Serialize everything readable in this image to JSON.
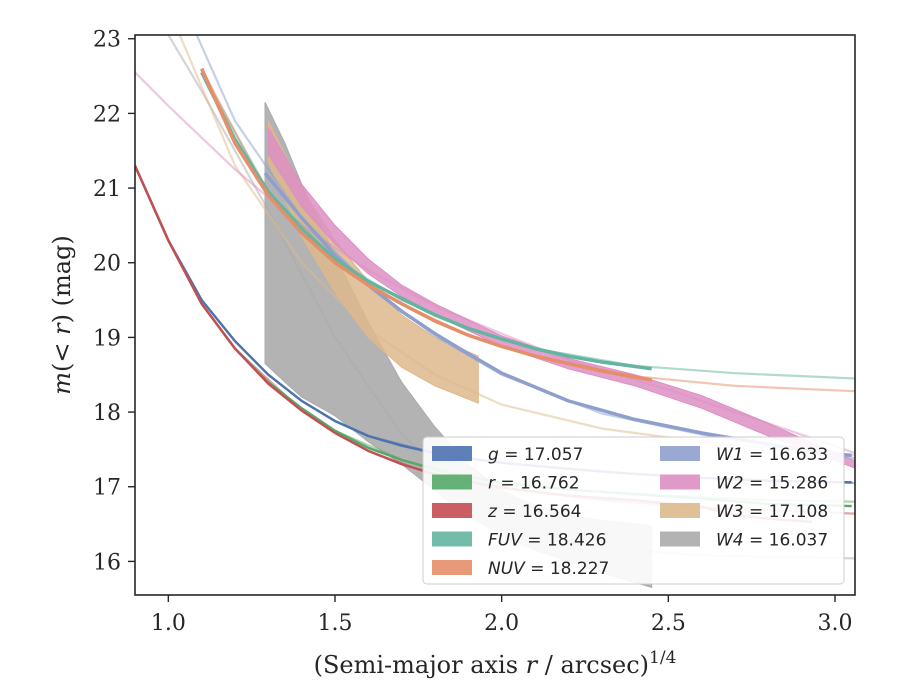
{
  "chart_data": {
    "type": "line",
    "xlabel": "(Semi-major axis r / arcsec)^{1/4}",
    "ylabel": "m(< r) (mag)",
    "xlim": [
      0.9,
      3.06
    ],
    "ylim": [
      23.05,
      15.55
    ],
    "y_inverted": true,
    "x_ticks": [
      1.0,
      1.5,
      2.0,
      2.5,
      3.0
    ],
    "x_tick_labels": [
      "1.0",
      "1.5",
      "2.0",
      "2.5",
      "3.0"
    ],
    "y_ticks": [
      16,
      17,
      18,
      19,
      20,
      21,
      22,
      23
    ],
    "y_tick_labels": [
      "16",
      "17",
      "18",
      "19",
      "20",
      "21",
      "22",
      "23"
    ],
    "grid": false,
    "legend_position": "lower-right",
    "legend_columns": 2,
    "series": [
      {
        "name": "g",
        "label_value": "17.057",
        "color": "#4c72b0",
        "data": [
          [
            0.9,
            21.3
          ],
          [
            1.0,
            20.3
          ],
          [
            1.1,
            19.5
          ],
          [
            1.2,
            18.95
          ],
          [
            1.3,
            18.5
          ],
          [
            1.4,
            18.15
          ],
          [
            1.5,
            17.88
          ],
          [
            1.6,
            17.68
          ],
          [
            1.7,
            17.55
          ],
          [
            1.8,
            17.45
          ],
          [
            1.9,
            17.38
          ],
          [
            2.0,
            17.32
          ],
          [
            2.2,
            17.24
          ],
          [
            2.4,
            17.17
          ],
          [
            2.6,
            17.12
          ],
          [
            2.8,
            17.08
          ],
          [
            3.05,
            17.06
          ]
        ],
        "model": [
          [
            0.9,
            21.3
          ],
          [
            1.0,
            20.3
          ],
          [
            1.1,
            19.5
          ],
          [
            1.2,
            18.95
          ],
          [
            1.3,
            18.5
          ],
          [
            1.4,
            18.15
          ],
          [
            1.5,
            17.88
          ],
          [
            1.6,
            17.68
          ],
          [
            1.8,
            17.45
          ],
          [
            2.0,
            17.32
          ],
          [
            2.3,
            17.2
          ],
          [
            2.6,
            17.12
          ],
          [
            3.06,
            17.05
          ]
        ]
      },
      {
        "name": "r",
        "label_value": "16.762",
        "color": "#55a868",
        "data": [
          [
            0.9,
            21.3
          ],
          [
            1.0,
            20.3
          ],
          [
            1.1,
            19.45
          ],
          [
            1.2,
            18.85
          ],
          [
            1.3,
            18.4
          ],
          [
            1.4,
            18.05
          ],
          [
            1.5,
            17.75
          ],
          [
            1.6,
            17.52
          ],
          [
            1.7,
            17.36
          ],
          [
            1.8,
            17.23
          ],
          [
            1.9,
            17.13
          ],
          [
            2.0,
            17.05
          ],
          [
            2.2,
            16.96
          ],
          [
            2.4,
            16.9
          ],
          [
            2.6,
            16.84
          ],
          [
            2.8,
            16.77
          ],
          [
            3.05,
            16.74
          ]
        ],
        "model": [
          [
            0.9,
            21.3
          ],
          [
            1.0,
            20.3
          ],
          [
            1.1,
            19.45
          ],
          [
            1.2,
            18.85
          ],
          [
            1.3,
            18.4
          ],
          [
            1.4,
            18.05
          ],
          [
            1.5,
            17.75
          ],
          [
            1.7,
            17.36
          ],
          [
            1.9,
            17.13
          ],
          [
            2.2,
            16.96
          ],
          [
            2.5,
            16.88
          ],
          [
            2.8,
            16.82
          ],
          [
            3.06,
            16.8
          ]
        ]
      },
      {
        "name": "z",
        "label_value": "16.564",
        "color": "#c44e52",
        "data": [
          [
            0.9,
            21.3
          ],
          [
            1.0,
            20.3
          ],
          [
            1.1,
            19.45
          ],
          [
            1.2,
            18.85
          ],
          [
            1.3,
            18.38
          ],
          [
            1.4,
            18.02
          ],
          [
            1.5,
            17.72
          ],
          [
            1.6,
            17.48
          ],
          [
            1.7,
            17.3
          ],
          [
            1.8,
            17.17
          ],
          [
            1.9,
            17.07
          ],
          [
            2.0,
            16.99
          ],
          [
            2.2,
            16.88
          ],
          [
            2.4,
            16.82
          ],
          [
            2.6,
            16.73
          ],
          [
            2.7,
            16.62
          ],
          [
            2.8,
            16.57
          ],
          [
            2.93,
            16.53
          ]
        ],
        "model": [
          [
            0.9,
            21.3
          ],
          [
            1.0,
            20.3
          ],
          [
            1.1,
            19.45
          ],
          [
            1.2,
            18.85
          ],
          [
            1.4,
            18.02
          ],
          [
            1.6,
            17.48
          ],
          [
            1.8,
            17.15
          ],
          [
            2.0,
            16.98
          ],
          [
            2.3,
            16.82
          ],
          [
            2.6,
            16.72
          ],
          [
            3.06,
            16.64
          ]
        ]
      },
      {
        "name": "FUV",
        "label_value": "18.426",
        "color": "#64b5a0",
        "data": [
          [
            1.1,
            22.55
          ],
          [
            1.2,
            21.65
          ],
          [
            1.3,
            20.95
          ],
          [
            1.4,
            20.45
          ],
          [
            1.5,
            20.05
          ],
          [
            1.6,
            19.75
          ],
          [
            1.7,
            19.52
          ],
          [
            1.8,
            19.3
          ],
          [
            1.9,
            19.12
          ],
          [
            2.0,
            18.98
          ],
          [
            2.1,
            18.85
          ],
          [
            2.2,
            18.75
          ],
          [
            2.3,
            18.67
          ],
          [
            2.45,
            18.58
          ]
        ],
        "model": [
          [
            1.1,
            22.55
          ],
          [
            1.3,
            20.95
          ],
          [
            1.5,
            20.05
          ],
          [
            1.7,
            19.5
          ],
          [
            1.9,
            19.12
          ],
          [
            2.1,
            18.85
          ],
          [
            2.4,
            18.62
          ],
          [
            2.7,
            18.52
          ],
          [
            3.06,
            18.45
          ]
        ]
      },
      {
        "name": "NUV",
        "label_value": "18.227",
        "color": "#e58e6a",
        "data": [
          [
            1.1,
            22.6
          ],
          [
            1.2,
            21.6
          ],
          [
            1.3,
            20.9
          ],
          [
            1.4,
            20.4
          ],
          [
            1.5,
            20.0
          ],
          [
            1.6,
            19.7
          ],
          [
            1.7,
            19.45
          ],
          [
            1.8,
            19.22
          ],
          [
            1.9,
            19.03
          ],
          [
            2.0,
            18.88
          ],
          [
            2.1,
            18.75
          ],
          [
            2.2,
            18.65
          ],
          [
            2.3,
            18.55
          ],
          [
            2.45,
            18.43
          ]
        ],
        "model": [
          [
            1.1,
            22.6
          ],
          [
            1.3,
            20.9
          ],
          [
            1.5,
            20.0
          ],
          [
            1.7,
            19.45
          ],
          [
            1.9,
            19.03
          ],
          [
            2.1,
            18.75
          ],
          [
            2.4,
            18.48
          ],
          [
            2.7,
            18.35
          ],
          [
            3.06,
            18.28
          ]
        ]
      },
      {
        "name": "W1",
        "label_value": "16.633",
        "color": "#8f9fcd",
        "data": [
          [
            1.29,
            21.2
          ],
          [
            1.4,
            20.6
          ],
          [
            1.5,
            20.1
          ],
          [
            1.6,
            19.7
          ],
          [
            1.7,
            19.35
          ],
          [
            1.8,
            19.05
          ],
          [
            1.9,
            18.78
          ],
          [
            2.0,
            18.52
          ],
          [
            2.2,
            18.15
          ],
          [
            2.4,
            17.9
          ],
          [
            2.6,
            17.72
          ],
          [
            2.8,
            17.57
          ],
          [
            2.95,
            17.46
          ],
          [
            3.05,
            17.42
          ]
        ],
        "model": [
          [
            1.07,
            23.2
          ],
          [
            1.2,
            21.9
          ],
          [
            1.4,
            20.6
          ],
          [
            1.6,
            19.7
          ],
          [
            1.8,
            19.02
          ],
          [
            2.0,
            18.5
          ],
          [
            2.3,
            17.98
          ],
          [
            2.6,
            17.7
          ],
          [
            2.8,
            17.56
          ],
          [
            3.06,
            17.38
          ]
        ]
      },
      {
        "name": "W2",
        "label_value": "15.286",
        "color": "#dd8fc4",
        "data_lower": [
          [
            1.3,
            21.8
          ],
          [
            1.4,
            21.05
          ],
          [
            1.5,
            20.5
          ],
          [
            1.6,
            20.05
          ],
          [
            1.7,
            19.7
          ],
          [
            1.8,
            19.45
          ],
          [
            2.0,
            19.02
          ],
          [
            2.2,
            18.72
          ],
          [
            2.4,
            18.5
          ],
          [
            2.6,
            18.22
          ],
          [
            2.8,
            17.85
          ],
          [
            3.0,
            17.45
          ],
          [
            3.06,
            17.35
          ]
        ],
        "data_upper": [
          [
            1.3,
            21.45
          ],
          [
            1.4,
            20.75
          ],
          [
            1.5,
            20.25
          ],
          [
            1.6,
            19.85
          ],
          [
            1.7,
            19.55
          ],
          [
            1.8,
            19.3
          ],
          [
            2.0,
            18.88
          ],
          [
            2.2,
            18.58
          ],
          [
            2.4,
            18.35
          ],
          [
            2.6,
            18.05
          ],
          [
            2.8,
            17.68
          ],
          [
            3.0,
            17.35
          ],
          [
            3.06,
            17.25
          ]
        ],
        "model": [
          [
            0.9,
            22.55
          ],
          [
            1.0,
            22.1
          ],
          [
            1.2,
            21.25
          ],
          [
            1.4,
            20.5
          ],
          [
            1.6,
            19.9
          ],
          [
            1.8,
            19.42
          ],
          [
            2.0,
            19.05
          ],
          [
            2.2,
            18.7
          ],
          [
            2.5,
            18.3
          ],
          [
            2.8,
            17.85
          ],
          [
            3.06,
            17.45
          ]
        ]
      },
      {
        "name": "W3",
        "label_value": "17.108",
        "color": "#ddb98c",
        "data_lower": [
          [
            1.3,
            21.9
          ],
          [
            1.4,
            21.0
          ],
          [
            1.5,
            20.3
          ],
          [
            1.6,
            19.75
          ],
          [
            1.7,
            19.3
          ],
          [
            1.8,
            19.0
          ],
          [
            1.93,
            18.75
          ]
        ],
        "data_upper": [
          [
            1.3,
            21.35
          ],
          [
            1.4,
            20.35
          ],
          [
            1.5,
            19.6
          ],
          [
            1.6,
            19.0
          ],
          [
            1.7,
            18.6
          ],
          [
            1.8,
            18.35
          ],
          [
            1.93,
            18.12
          ]
        ],
        "model": [
          [
            1.02,
            23.2
          ],
          [
            1.2,
            21.3
          ],
          [
            1.4,
            20.0
          ],
          [
            1.6,
            19.1
          ],
          [
            1.8,
            18.5
          ],
          [
            2.0,
            18.1
          ],
          [
            2.3,
            17.78
          ],
          [
            2.6,
            17.6
          ],
          [
            3.06,
            17.42
          ]
        ]
      },
      {
        "name": "W4",
        "label_value": "16.037",
        "color": "#ababab",
        "data_lower": [
          [
            1.29,
            22.15
          ],
          [
            1.35,
            21.6
          ],
          [
            1.4,
            21.05
          ],
          [
            1.5,
            20.1
          ],
          [
            1.6,
            19.2
          ],
          [
            1.7,
            18.4
          ],
          [
            1.8,
            17.8
          ],
          [
            1.9,
            17.3
          ],
          [
            2.0,
            16.95
          ],
          [
            2.1,
            16.75
          ],
          [
            2.2,
            16.62
          ],
          [
            2.3,
            16.55
          ],
          [
            2.45,
            16.48
          ]
        ],
        "data_upper": [
          [
            1.29,
            18.65
          ],
          [
            1.35,
            18.4
          ],
          [
            1.4,
            18.2
          ],
          [
            1.5,
            17.95
          ],
          [
            1.6,
            17.6
          ],
          [
            1.7,
            17.3
          ],
          [
            1.8,
            16.95
          ],
          [
            1.9,
            16.6
          ],
          [
            2.0,
            16.35
          ],
          [
            2.1,
            16.15
          ],
          [
            2.2,
            16.0
          ],
          [
            2.3,
            15.85
          ],
          [
            2.45,
            15.65
          ]
        ],
        "model": [
          [
            0.98,
            23.2
          ],
          [
            1.1,
            22.3
          ],
          [
            1.3,
            20.7
          ],
          [
            1.5,
            19.0
          ],
          [
            1.7,
            17.7
          ],
          [
            1.9,
            16.9
          ],
          [
            2.1,
            16.4
          ],
          [
            2.3,
            16.18
          ],
          [
            2.6,
            16.08
          ],
          [
            3.06,
            16.04
          ]
        ]
      }
    ]
  }
}
